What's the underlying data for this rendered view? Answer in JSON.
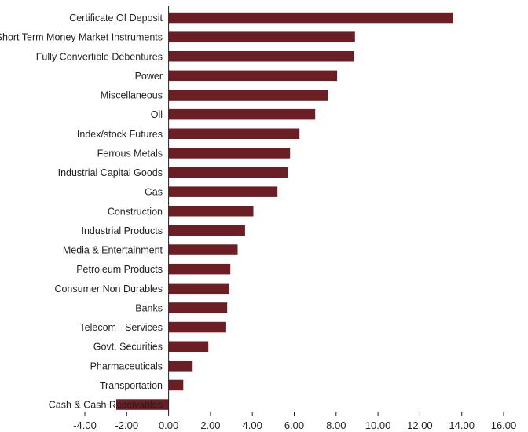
{
  "chart_data": {
    "type": "bar",
    "orientation": "horizontal",
    "categories": [
      "Certificate Of Deposit",
      "Short Term Money Market Instruments",
      "Fully Convertible Debentures",
      "Power",
      "Miscellaneous",
      "Oil",
      "Index/stock Futures",
      "Ferrous Metals",
      "Industrial Capital Goods",
      "Gas",
      "Construction",
      "Industrial Products",
      "Media & Entertainment",
      "Petroleum Products",
      "Consumer Non Durables",
      "Banks",
      "Telecom - Services",
      "Govt. Securities",
      "Pharmaceuticals",
      "Transportation",
      "Cash & Cash Receivables"
    ],
    "values": [
      13.6,
      8.9,
      8.85,
      8.05,
      7.6,
      7.0,
      6.25,
      5.8,
      5.7,
      5.2,
      4.05,
      3.65,
      3.3,
      2.95,
      2.9,
      2.8,
      2.75,
      1.9,
      1.15,
      0.7,
      -2.5
    ],
    "xlim": [
      -4,
      16
    ],
    "x_ticks": [
      "-4.00",
      "-2.00",
      "0.00",
      "2.00",
      "4.00",
      "6.00",
      "8.00",
      "10.00",
      "12.00",
      "14.00",
      "16.00"
    ],
    "tick_values": [
      -4,
      -2,
      0,
      2,
      4,
      6,
      8,
      10,
      12,
      14,
      16
    ],
    "bar_color": "#6b1e23",
    "grid": false,
    "legend": "none",
    "title": "",
    "xlabel": "",
    "ylabel": ""
  }
}
